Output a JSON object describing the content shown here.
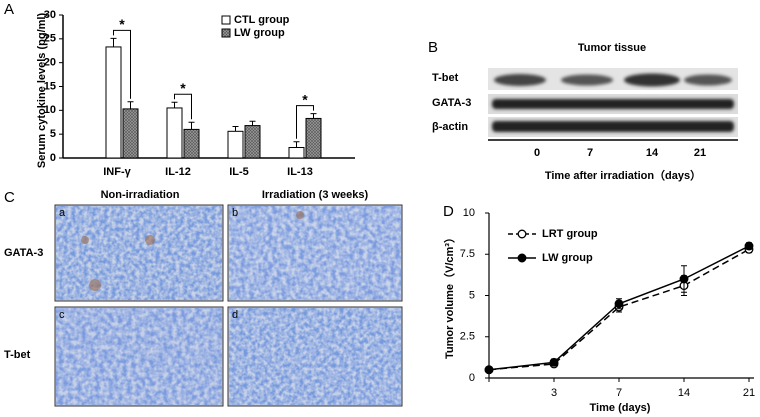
{
  "panels": [
    "A",
    "B",
    "C",
    "D"
  ],
  "chart_data": [
    {
      "type": "bar",
      "y_label": "Serum cytokine levels (pg/ml)",
      "categories": [
        "INF-γ",
        "IL-12",
        "IL-5",
        "IL-13"
      ],
      "series": [
        {
          "name": "CTL group",
          "color": "#ffffff",
          "values": [
            23.3,
            10.5,
            5.6,
            2.2
          ],
          "errors": [
            1.8,
            1.2,
            1.0,
            1.2
          ]
        },
        {
          "name": "LW group",
          "color": "#9a9a9a",
          "values": [
            10.3,
            6.0,
            6.8,
            8.3
          ],
          "errors": [
            1.5,
            1.5,
            0.9,
            1.0
          ]
        }
      ],
      "ylim": [
        0,
        30
      ],
      "yticks": [
        0,
        5,
        10,
        15,
        20,
        25,
        30
      ],
      "annotations": [
        {
          "text": "*",
          "category": "INF-γ"
        },
        {
          "text": "*",
          "category": "IL-12"
        },
        {
          "text": "*",
          "category": "IL-13"
        }
      ]
    },
    {
      "type": "line",
      "x_label": "Time (days)",
      "y_label": "Tumor volume（V/cm³）",
      "categories": [
        null,
        "3",
        "7",
        "14",
        "21"
      ],
      "series": [
        {
          "name": "LRT group",
          "color": "#000000",
          "marker": "open",
          "dashed": true,
          "values": [
            0.5,
            0.85,
            4.3,
            5.6,
            7.8
          ],
          "errors": [
            0.1,
            0.15,
            0.3,
            0.6,
            0.2
          ]
        },
        {
          "name": "LW group",
          "color": "#000000",
          "marker": "filled",
          "dashed": false,
          "values": [
            0.5,
            0.95,
            4.5,
            6.0,
            8.0
          ],
          "errors": [
            0.1,
            0.2,
            0.3,
            0.8,
            0.2
          ]
        }
      ],
      "ylim": [
        0,
        10
      ],
      "yticks": [
        0,
        2.5,
        5,
        7.5,
        10
      ]
    }
  ],
  "blot": {
    "title": "Tumor tissue",
    "rows": [
      "T-bet",
      "GATA-3",
      "β-actin"
    ],
    "lanes": [
      "0",
      "7",
      "14",
      "21"
    ],
    "x_label": "Time after irradiation（days）"
  },
  "histology": {
    "columns": [
      "Non-irradiation",
      "Irradiation (3 weeks)"
    ],
    "rows": [
      "GATA-3",
      "T-bet"
    ],
    "subpanels": [
      "a",
      "b",
      "c",
      "d"
    ]
  }
}
